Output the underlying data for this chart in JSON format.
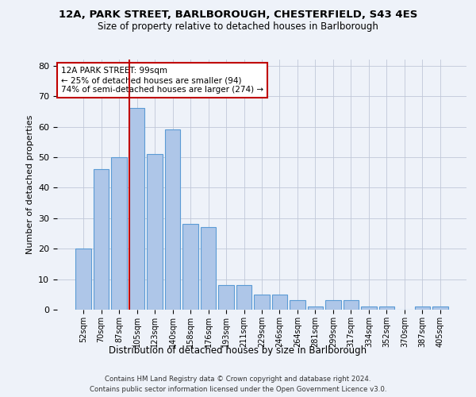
{
  "title_line1": "12A, PARK STREET, BARLBOROUGH, CHESTERFIELD, S43 4ES",
  "title_line2": "Size of property relative to detached houses in Barlborough",
  "xlabel": "Distribution of detached houses by size in Barlborough",
  "ylabel": "Number of detached properties",
  "categories": [
    "52sqm",
    "70sqm",
    "87sqm",
    "105sqm",
    "123sqm",
    "140sqm",
    "158sqm",
    "176sqm",
    "193sqm",
    "211sqm",
    "229sqm",
    "246sqm",
    "264sqm",
    "281sqm",
    "299sqm",
    "317sqm",
    "334sqm",
    "352sqm",
    "370sqm",
    "387sqm",
    "405sqm"
  ],
  "values": [
    20,
    46,
    50,
    66,
    51,
    59,
    28,
    27,
    8,
    8,
    5,
    5,
    3,
    1,
    3,
    3,
    1,
    1,
    0,
    1,
    1
  ],
  "bar_color": "#aec6e8",
  "bar_edge_color": "#5b9bd5",
  "highlight_line_color": "#c00000",
  "annotation_text": "12A PARK STREET: 99sqm\n← 25% of detached houses are smaller (94)\n74% of semi-detached houses are larger (274) →",
  "annotation_box_color": "#ffffff",
  "annotation_box_edge_color": "#c00000",
  "ylim": [
    0,
    82
  ],
  "yticks": [
    0,
    10,
    20,
    30,
    40,
    50,
    60,
    70,
    80
  ],
  "footer_line1": "Contains HM Land Registry data © Crown copyright and database right 2024.",
  "footer_line2": "Contains public sector information licensed under the Open Government Licence v3.0.",
  "bg_color": "#eef2f9",
  "plot_bg_color": "#eef2f9"
}
